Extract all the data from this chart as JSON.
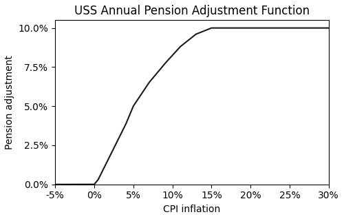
{
  "title": "USS Annual Pension Adjustment Function",
  "xlabel": "CPI inflation",
  "ylabel": "Pension adjustment",
  "xlim": [
    -0.05,
    0.3
  ],
  "ylim": [
    0.0,
    0.105
  ],
  "xticks": [
    -0.05,
    0.0,
    0.05,
    0.1,
    0.15,
    0.2,
    0.25,
    0.3
  ],
  "yticks": [
    0.0,
    0.025,
    0.05,
    0.075,
    0.1
  ],
  "keypoints_x": [
    -0.05,
    0.0,
    0.005,
    0.01,
    0.02,
    0.03,
    0.04,
    0.05,
    0.07,
    0.09,
    0.11,
    0.13,
    0.15,
    0.2,
    0.25,
    0.3
  ],
  "keypoints_y": [
    0.0,
    0.0,
    0.003,
    0.008,
    0.018,
    0.028,
    0.038,
    0.05,
    0.065,
    0.077,
    0.088,
    0.096,
    0.1,
    0.1,
    0.1,
    0.1
  ],
  "line_color": "#1a1a1a",
  "line_width": 1.5,
  "figsize": [
    5.0,
    3.18
  ],
  "dpi": 100,
  "title_fontsize": 12
}
